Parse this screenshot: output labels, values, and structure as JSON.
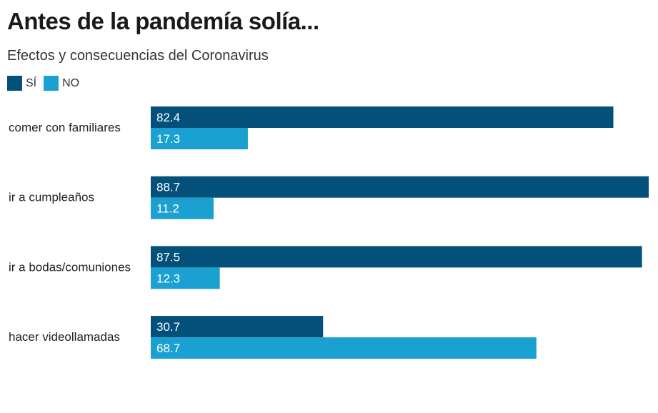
{
  "colors": {
    "si": "#03517a",
    "no": "#1ba1d1"
  },
  "chart_data": {
    "type": "bar",
    "orientation": "horizontal",
    "title": "Antes de la pandemía solía...",
    "subtitle": "Efectos y consecuencias del Coronavirus",
    "categories": [
      "comer con familiares",
      "ir a cumpleaños",
      "ir a bodas/comuniones",
      "hacer videollamadas"
    ],
    "series": [
      {
        "name": "SÍ",
        "values": [
          82.4,
          88.7,
          87.5,
          30.7
        ]
      },
      {
        "name": "NO",
        "values": [
          17.3,
          11.2,
          12.3,
          68.7
        ]
      }
    ],
    "xlim": [
      0,
      88.7
    ],
    "grid": false,
    "legend_position": "top-left"
  }
}
